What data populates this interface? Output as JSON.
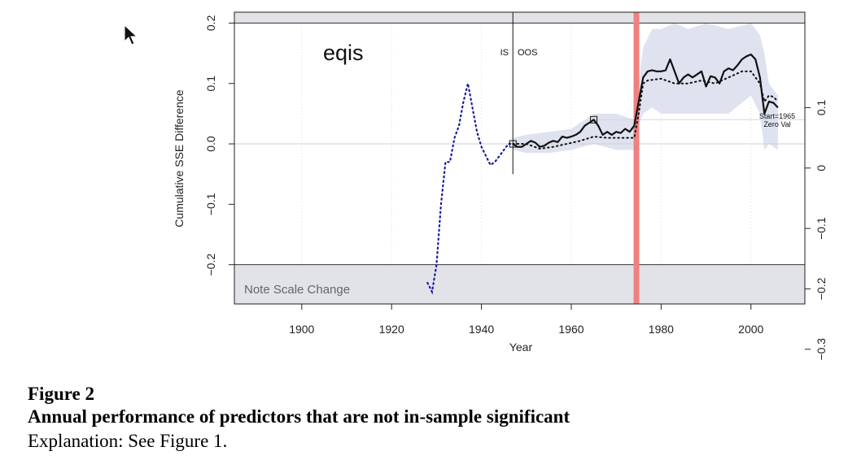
{
  "figure": {
    "label": "Figure 2",
    "title": "Annual performance of predictors that are not in-sample significant",
    "explanation": "Explanation: See Figure 1."
  },
  "chart_data": {
    "type": "line",
    "title": "eqis",
    "xlabel": "Year",
    "ylabel": "Cumulative SSE Difference",
    "xlim": [
      1885,
      2012
    ],
    "ylim": [
      -0.265,
      0.218
    ],
    "x_ticks": [
      1900,
      1920,
      1940,
      1960,
      1980,
      2000
    ],
    "y_ticks": [
      -0.2,
      -0.1,
      0.0,
      0.1,
      0.2
    ],
    "y_tick_labels": [
      "−0.2",
      "−0.1",
      "0.0",
      "0.1",
      "0.2"
    ],
    "right_axis": {
      "ticks": [
        0.1,
        0.0,
        -0.1,
        -0.2,
        -0.3
      ],
      "tick_labels": [
        "0.1",
        "0",
        "−0.1",
        "−0.2",
        "−0.3"
      ],
      "left_equivalent": [
        0.1,
        0.0,
        -0.1,
        -0.2,
        -0.3
      ],
      "display_offset": -0.04
    },
    "split_line": {
      "x": 1947,
      "left_label": "IS",
      "right_label": "OOS"
    },
    "shaded_event": {
      "x": 1974.5,
      "color": "#f08080"
    },
    "note": "Note Scale Change",
    "zero_note": [
      "Start=1965",
      "Zero Val"
    ],
    "series": [
      {
        "kind": "in-sample",
        "color": "#1a1aa0",
        "points": [
          [
            1928,
            -0.23
          ],
          [
            1929,
            -0.245
          ],
          [
            1930,
            -0.2
          ],
          [
            1931,
            -0.1
          ],
          [
            1932,
            -0.03
          ],
          [
            1933,
            -0.03
          ],
          [
            1934,
            0.01
          ],
          [
            1935,
            0.03
          ],
          [
            1936,
            0.07
          ],
          [
            1937,
            0.1
          ],
          [
            1938,
            0.06
          ],
          [
            1939,
            0.02
          ],
          [
            1940,
            -0.005
          ],
          [
            1941,
            -0.02
          ],
          [
            1942,
            -0.035
          ],
          [
            1943,
            -0.03
          ],
          [
            1944,
            -0.02
          ],
          [
            1945,
            -0.01
          ],
          [
            1946,
            0.0
          ],
          [
            1947,
            0.0
          ]
        ]
      },
      {
        "kind": "oos-solid",
        "color": "#111111",
        "points": [
          [
            1947,
            0.0
          ],
          [
            1948,
            -0.005
          ],
          [
            1949,
            -0.005
          ],
          [
            1950,
            0.0
          ],
          [
            1951,
            0.005
          ],
          [
            1952,
            0.002
          ],
          [
            1953,
            -0.005
          ],
          [
            1954,
            -0.003
          ],
          [
            1955,
            0.002
          ],
          [
            1956,
            0.005
          ],
          [
            1957,
            0.003
          ],
          [
            1958,
            0.012
          ],
          [
            1959,
            0.01
          ],
          [
            1960,
            0.012
          ],
          [
            1961,
            0.015
          ],
          [
            1962,
            0.02
          ],
          [
            1963,
            0.03
          ],
          [
            1964,
            0.035
          ],
          [
            1965,
            0.04
          ],
          [
            1966,
            0.03
          ],
          [
            1967,
            0.015
          ],
          [
            1968,
            0.02
          ],
          [
            1969,
            0.015
          ],
          [
            1970,
            0.02
          ],
          [
            1971,
            0.018
          ],
          [
            1972,
            0.025
          ],
          [
            1973,
            0.02
          ],
          [
            1974,
            0.03
          ],
          [
            1975,
            0.07
          ],
          [
            1976,
            0.11
          ],
          [
            1977,
            0.12
          ],
          [
            1978,
            0.122
          ],
          [
            1979,
            0.12
          ],
          [
            1980,
            0.12
          ],
          [
            1981,
            0.122
          ],
          [
            1982,
            0.14
          ],
          [
            1983,
            0.12
          ],
          [
            1984,
            0.1
          ],
          [
            1985,
            0.11
          ],
          [
            1986,
            0.115
          ],
          [
            1987,
            0.11
          ],
          [
            1988,
            0.115
          ],
          [
            1989,
            0.12
          ],
          [
            1990,
            0.095
          ],
          [
            1991,
            0.112
          ],
          [
            1992,
            0.11
          ],
          [
            1993,
            0.1
          ],
          [
            1994,
            0.12
          ],
          [
            1995,
            0.125
          ],
          [
            1996,
            0.122
          ],
          [
            1997,
            0.13
          ],
          [
            1998,
            0.14
          ],
          [
            1999,
            0.145
          ],
          [
            2000,
            0.148
          ],
          [
            2001,
            0.14
          ],
          [
            2002,
            0.11
          ],
          [
            2003,
            0.05
          ],
          [
            2004,
            0.07
          ],
          [
            2005,
            0.068
          ],
          [
            2006,
            0.06
          ]
        ]
      },
      {
        "kind": "oos-dotted",
        "color": "#111111",
        "points": [
          [
            1947,
            0.0
          ],
          [
            1950,
            0.0
          ],
          [
            1953,
            -0.008
          ],
          [
            1956,
            -0.005
          ],
          [
            1959,
            0.0
          ],
          [
            1962,
            0.005
          ],
          [
            1965,
            0.012
          ],
          [
            1968,
            0.01
          ],
          [
            1971,
            0.01
          ],
          [
            1974,
            0.01
          ],
          [
            1975,
            0.05
          ],
          [
            1976,
            0.1
          ],
          [
            1977,
            0.105
          ],
          [
            1980,
            0.108
          ],
          [
            1983,
            0.1
          ],
          [
            1986,
            0.1
          ],
          [
            1989,
            0.105
          ],
          [
            1992,
            0.1
          ],
          [
            1995,
            0.11
          ],
          [
            1998,
            0.12
          ],
          [
            2000,
            0.12
          ],
          [
            2002,
            0.1
          ],
          [
            2003,
            0.07
          ],
          [
            2004,
            0.08
          ],
          [
            2005,
            0.078
          ],
          [
            2006,
            0.07
          ]
        ]
      }
    ],
    "band": {
      "color": "#dfe3f0",
      "x": [
        1947,
        1950,
        1955,
        1960,
        1965,
        1970,
        1974,
        1975,
        1976,
        1978,
        1980,
        1983,
        1986,
        1990,
        1995,
        2000,
        2002,
        2003,
        2004,
        2006
      ],
      "upper": [
        0.01,
        0.015,
        0.02,
        0.025,
        0.05,
        0.05,
        0.04,
        0.1,
        0.16,
        0.19,
        0.19,
        0.2,
        0.19,
        0.2,
        0.19,
        0.2,
        0.18,
        0.15,
        0.1,
        0.08
      ],
      "lower": [
        -0.01,
        -0.015,
        -0.015,
        -0.01,
        0.0,
        -0.01,
        -0.01,
        0.03,
        0.05,
        0.06,
        0.05,
        0.05,
        0.05,
        0.05,
        0.05,
        0.08,
        0.05,
        -0.01,
        0.0,
        -0.01
      ]
    },
    "markers": [
      [
        1947,
        0.0
      ],
      [
        1965,
        0.04
      ]
    ]
  }
}
